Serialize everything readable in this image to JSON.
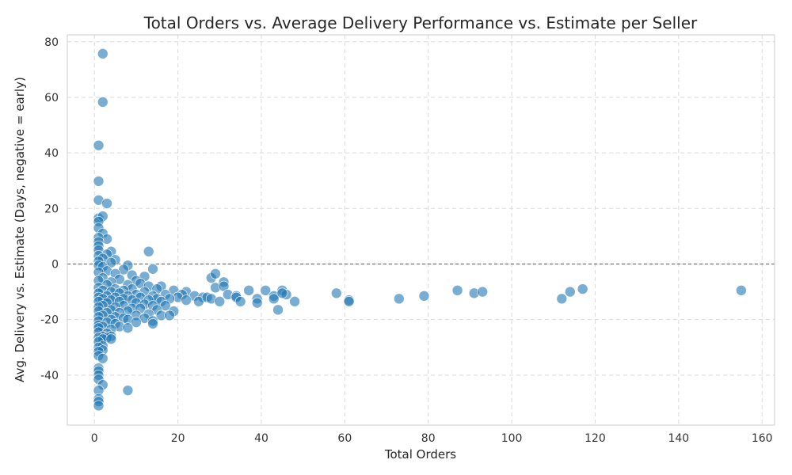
{
  "chart_data": {
    "type": "scatter",
    "title": "Total Orders vs. Average Delivery Performance vs. Estimate per Seller",
    "xlabel": "Total Orders",
    "ylabel": "Avg. Delivery vs. Estimate (Days, negative = early)",
    "xlim": [
      -6.5,
      163
    ],
    "ylim": [
      -58,
      82.5
    ],
    "xticks": [
      0,
      20,
      40,
      60,
      80,
      100,
      120,
      140,
      160
    ],
    "yticks": [
      -40,
      -20,
      0,
      20,
      40,
      60,
      80
    ],
    "grid": true,
    "point_color": "#1f77b4",
    "point_alpha": 0.6,
    "reference_line": {
      "y": 0,
      "color": "#d62728",
      "style": "dashed"
    },
    "points": [
      {
        "x": 2,
        "y": 75.7
      },
      {
        "x": 2,
        "y": 58.3
      },
      {
        "x": 1,
        "y": 42.7
      },
      {
        "x": 1,
        "y": 29.8
      },
      {
        "x": 1,
        "y": 23.0
      },
      {
        "x": 3,
        "y": 21.8
      },
      {
        "x": 1,
        "y": 16.5
      },
      {
        "x": 2,
        "y": 17.2
      },
      {
        "x": 1,
        "y": 15.3
      },
      {
        "x": 1,
        "y": 13.0
      },
      {
        "x": 2,
        "y": 11.0
      },
      {
        "x": 3,
        "y": 9.0
      },
      {
        "x": 1,
        "y": 9.5
      },
      {
        "x": 1,
        "y": 8.0
      },
      {
        "x": 1,
        "y": 6.5
      },
      {
        "x": 1,
        "y": 5.0
      },
      {
        "x": 4,
        "y": 4.5
      },
      {
        "x": 3,
        "y": 3.5
      },
      {
        "x": 1,
        "y": 3.0
      },
      {
        "x": 2,
        "y": 2.0
      },
      {
        "x": 5,
        "y": 1.5
      },
      {
        "x": 1,
        "y": 1.0
      },
      {
        "x": 4,
        "y": 0.5
      },
      {
        "x": 13,
        "y": 4.5
      },
      {
        "x": 1,
        "y": -0.5
      },
      {
        "x": 2,
        "y": -1.0
      },
      {
        "x": 8,
        "y": -0.5
      },
      {
        "x": 14,
        "y": -1.8
      },
      {
        "x": 7,
        "y": -2.0
      },
      {
        "x": 3,
        "y": -2.5
      },
      {
        "x": 1,
        "y": -3.0
      },
      {
        "x": 5,
        "y": -3.5
      },
      {
        "x": 9,
        "y": -4.0
      },
      {
        "x": 12,
        "y": -4.5
      },
      {
        "x": 2,
        "y": -5.0
      },
      {
        "x": 6,
        "y": -5.5
      },
      {
        "x": 10,
        "y": -6.0
      },
      {
        "x": 1,
        "y": -6.0
      },
      {
        "x": 4,
        "y": -6.5
      },
      {
        "x": 11,
        "y": -7.0
      },
      {
        "x": 3,
        "y": -7.5
      },
      {
        "x": 8,
        "y": -7.5
      },
      {
        "x": 13,
        "y": -8.0
      },
      {
        "x": 16,
        "y": -8.0
      },
      {
        "x": 1,
        "y": -8.5
      },
      {
        "x": 5,
        "y": -9.0
      },
      {
        "x": 9,
        "y": -9.0
      },
      {
        "x": 15,
        "y": -9.0
      },
      {
        "x": 2,
        "y": -9.5
      },
      {
        "x": 7,
        "y": -9.5
      },
      {
        "x": 19,
        "y": -9.5
      },
      {
        "x": 4,
        "y": -10.0
      },
      {
        "x": 12,
        "y": -10.0
      },
      {
        "x": 22,
        "y": -10.0
      },
      {
        "x": 1,
        "y": -10.5
      },
      {
        "x": 6,
        "y": -10.5
      },
      {
        "x": 10,
        "y": -11.0
      },
      {
        "x": 17,
        "y": -11.0
      },
      {
        "x": 21,
        "y": -11.0
      },
      {
        "x": 3,
        "y": -11.5
      },
      {
        "x": 8,
        "y": -11.5
      },
      {
        "x": 14,
        "y": -11.5
      },
      {
        "x": 24,
        "y": -11.5
      },
      {
        "x": 1,
        "y": -12.0
      },
      {
        "x": 5,
        "y": -12.0
      },
      {
        "x": 11,
        "y": -12.0
      },
      {
        "x": 20,
        "y": -12.0
      },
      {
        "x": 26,
        "y": -12.0
      },
      {
        "x": 2,
        "y": -12.5
      },
      {
        "x": 7,
        "y": -12.5
      },
      {
        "x": 15,
        "y": -12.5
      },
      {
        "x": 18,
        "y": -12.5
      },
      {
        "x": 4,
        "y": -13.0
      },
      {
        "x": 9,
        "y": -13.0
      },
      {
        "x": 13,
        "y": -13.0
      },
      {
        "x": 22,
        "y": -13.0
      },
      {
        "x": 1,
        "y": -13.5
      },
      {
        "x": 6,
        "y": -13.5
      },
      {
        "x": 16,
        "y": -13.5
      },
      {
        "x": 25,
        "y": -13.5
      },
      {
        "x": 3,
        "y": -14.0
      },
      {
        "x": 10,
        "y": -14.0
      },
      {
        "x": 12,
        "y": -14.5
      },
      {
        "x": 2,
        "y": -15.0
      },
      {
        "x": 7,
        "y": -15.0
      },
      {
        "x": 14,
        "y": -15.0
      },
      {
        "x": 17,
        "y": -15.0
      },
      {
        "x": 1,
        "y": -15.5
      },
      {
        "x": 5,
        "y": -15.5
      },
      {
        "x": 9,
        "y": -16.0
      },
      {
        "x": 11,
        "y": -16.0
      },
      {
        "x": 4,
        "y": -16.5
      },
      {
        "x": 15,
        "y": -16.5
      },
      {
        "x": 1,
        "y": -17.0
      },
      {
        "x": 8,
        "y": -17.0
      },
      {
        "x": 19,
        "y": -17.0
      },
      {
        "x": 3,
        "y": -17.5
      },
      {
        "x": 6,
        "y": -17.5
      },
      {
        "x": 13,
        "y": -18.0
      },
      {
        "x": 2,
        "y": -18.5
      },
      {
        "x": 10,
        "y": -18.5
      },
      {
        "x": 16,
        "y": -18.5
      },
      {
        "x": 18,
        "y": -18.5
      },
      {
        "x": 1,
        "y": -19.0
      },
      {
        "x": 5,
        "y": -19.0
      },
      {
        "x": 7,
        "y": -19.5
      },
      {
        "x": 12,
        "y": -19.5
      },
      {
        "x": 4,
        "y": -20.0
      },
      {
        "x": 8,
        "y": -20.0
      },
      {
        "x": 14,
        "y": -20.5
      },
      {
        "x": 1,
        "y": -20.5
      },
      {
        "x": 3,
        "y": -21.0
      },
      {
        "x": 10,
        "y": -21.0
      },
      {
        "x": 5,
        "y": -21.5
      },
      {
        "x": 14,
        "y": -21.5
      },
      {
        "x": 1,
        "y": -22.0
      },
      {
        "x": 2,
        "y": -22.5
      },
      {
        "x": 6,
        "y": -22.5
      },
      {
        "x": 1,
        "y": -23.0
      },
      {
        "x": 8,
        "y": -23.0
      },
      {
        "x": 4,
        "y": -23.5
      },
      {
        "x": 1,
        "y": -24.5
      },
      {
        "x": 3,
        "y": -25.0
      },
      {
        "x": 2,
        "y": -26.0
      },
      {
        "x": 4,
        "y": -26.0
      },
      {
        "x": 1,
        "y": -26.5
      },
      {
        "x": 3,
        "y": -26.5
      },
      {
        "x": 2,
        "y": -27.0
      },
      {
        "x": 4,
        "y": -27.0
      },
      {
        "x": 1,
        "y": -28.0
      },
      {
        "x": 2,
        "y": -29.5
      },
      {
        "x": 1,
        "y": -30.0
      },
      {
        "x": 2,
        "y": -31.0
      },
      {
        "x": 1,
        "y": -31.5
      },
      {
        "x": 1,
        "y": -33.0
      },
      {
        "x": 2,
        "y": -34.0
      },
      {
        "x": 1,
        "y": -37.5
      },
      {
        "x": 1,
        "y": -38.5
      },
      {
        "x": 1,
        "y": -40.0
      },
      {
        "x": 1,
        "y": -41.5
      },
      {
        "x": 2,
        "y": -43.5
      },
      {
        "x": 1,
        "y": -45.5
      },
      {
        "x": 8,
        "y": -45.5
      },
      {
        "x": 1,
        "y": -48.5
      },
      {
        "x": 1,
        "y": -49.5
      },
      {
        "x": 1,
        "y": -51.0
      },
      {
        "x": 28,
        "y": -5.0
      },
      {
        "x": 29,
        "y": -3.5
      },
      {
        "x": 31,
        "y": -6.5
      },
      {
        "x": 29,
        "y": -8.5
      },
      {
        "x": 31,
        "y": -8.0
      },
      {
        "x": 27,
        "y": -12.0
      },
      {
        "x": 28,
        "y": -12.5
      },
      {
        "x": 30,
        "y": -13.5
      },
      {
        "x": 32,
        "y": -11.0
      },
      {
        "x": 34,
        "y": -11.5
      },
      {
        "x": 34,
        "y": -12.0
      },
      {
        "x": 35,
        "y": -13.5
      },
      {
        "x": 37,
        "y": -9.5
      },
      {
        "x": 39,
        "y": -12.5
      },
      {
        "x": 39,
        "y": -14.0
      },
      {
        "x": 41,
        "y": -9.5
      },
      {
        "x": 43,
        "y": -11.5
      },
      {
        "x": 43,
        "y": -12.5
      },
      {
        "x": 44,
        "y": -16.5
      },
      {
        "x": 45,
        "y": -9.5
      },
      {
        "x": 46,
        "y": -11.0
      },
      {
        "x": 45,
        "y": -10.5
      },
      {
        "x": 48,
        "y": -13.5
      },
      {
        "x": 58,
        "y": -10.5
      },
      {
        "x": 61,
        "y": -13.0
      },
      {
        "x": 61,
        "y": -13.5
      },
      {
        "x": 73,
        "y": -12.5
      },
      {
        "x": 79,
        "y": -11.5
      },
      {
        "x": 87,
        "y": -9.5
      },
      {
        "x": 91,
        "y": -10.5
      },
      {
        "x": 93,
        "y": -10.0
      },
      {
        "x": 112,
        "y": -12.5
      },
      {
        "x": 114,
        "y": -10.0
      },
      {
        "x": 117,
        "y": -9.0
      },
      {
        "x": 155,
        "y": -9.5
      }
    ]
  }
}
